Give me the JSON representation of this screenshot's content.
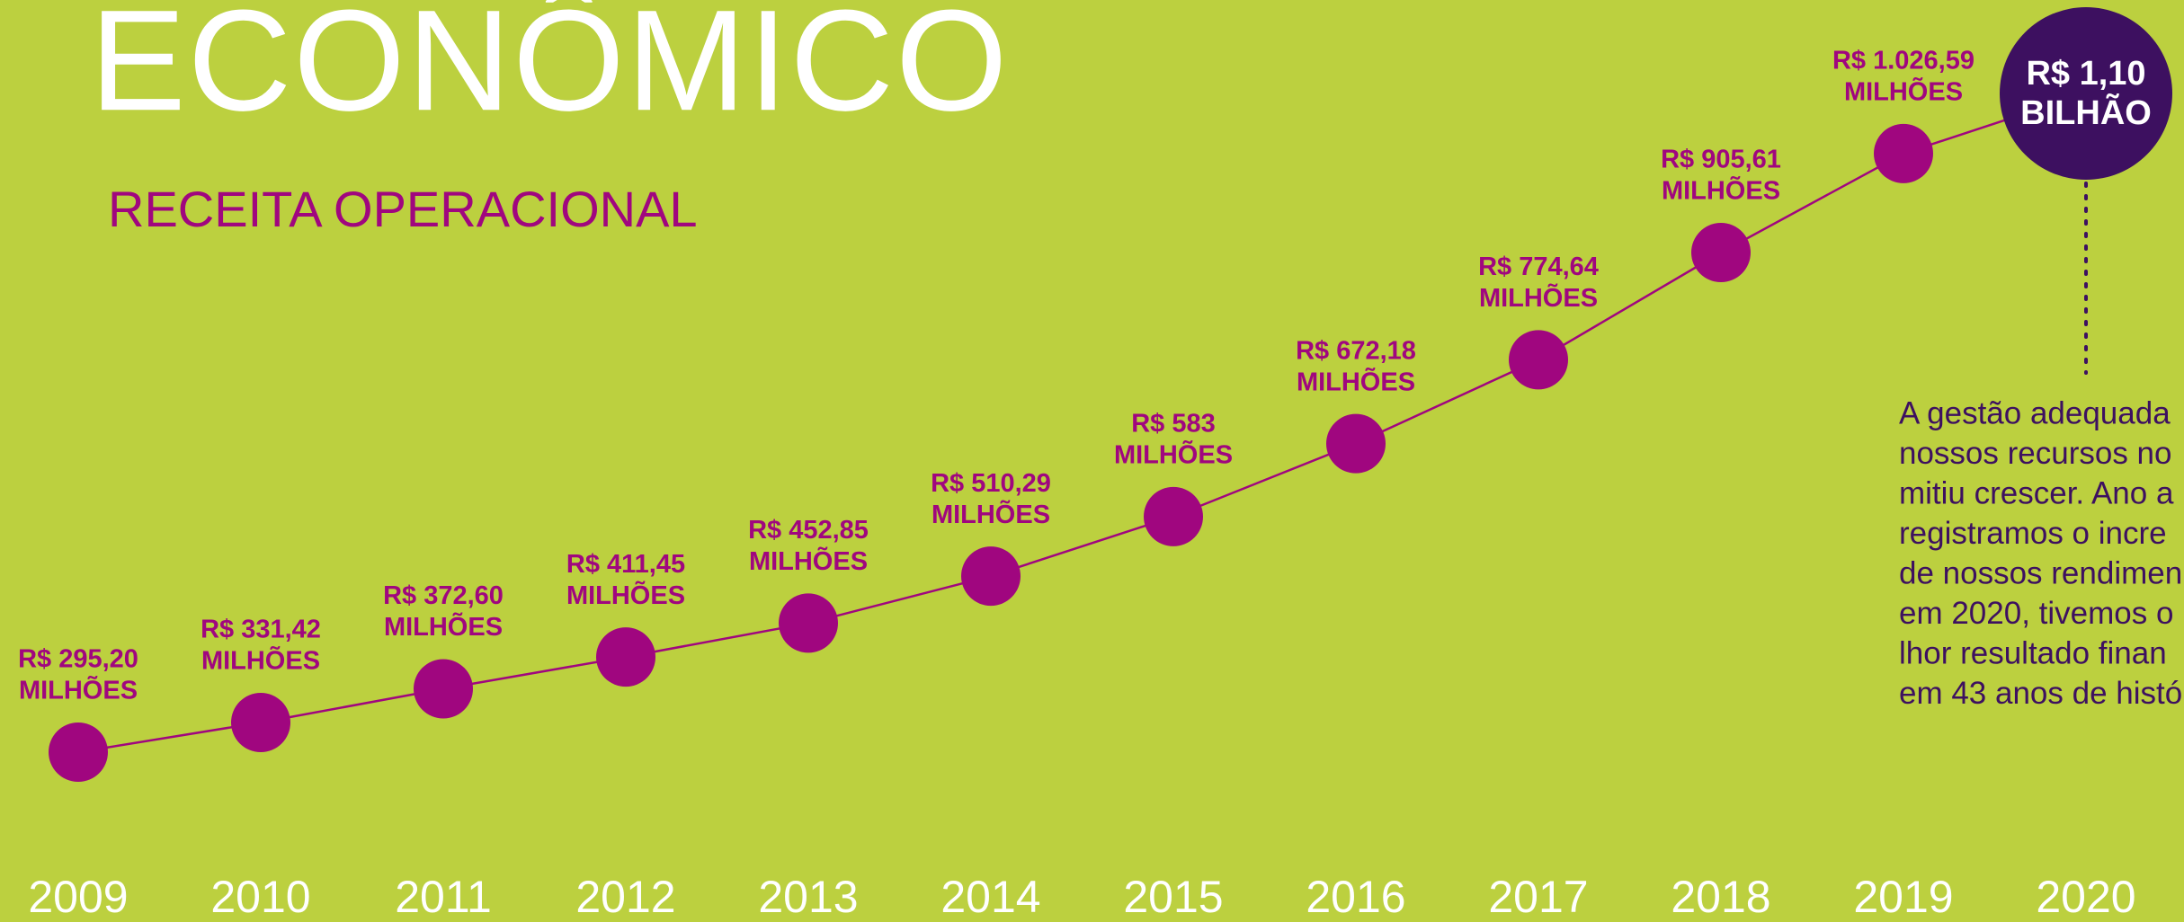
{
  "chart_data": {
    "type": "line",
    "title": "ECONÔMICO",
    "subtitle": "RECEITA OPERACIONAL",
    "categories": [
      "2009",
      "2010",
      "2011",
      "2012",
      "2013",
      "2014",
      "2015",
      "2016",
      "2017",
      "2018",
      "2019",
      "2020"
    ],
    "values": [
      295.2,
      331.42,
      372.6,
      411.45,
      452.85,
      510.29,
      583,
      672.18,
      774.64,
      905.61,
      1026.59,
      1100
    ],
    "value_labels": [
      [
        "R$ 295,20",
        "MILHÕES"
      ],
      [
        "R$ 331,42",
        "MILHÕES"
      ],
      [
        "R$ 372,60",
        "MILHÕES"
      ],
      [
        "R$ 411,45",
        "MILHÕES"
      ],
      [
        "R$ 452,85",
        "MILHÕES"
      ],
      [
        "R$ 510,29",
        "MILHÕES"
      ],
      [
        "R$ 583",
        "MILHÕES"
      ],
      [
        "R$ 672,18",
        "MILHÕES"
      ],
      [
        "R$ 774,64",
        "MILHÕES"
      ],
      [
        "R$ 905,61",
        "MILHÕES"
      ],
      [
        "R$ 1.026,59",
        "MILHÕES"
      ],
      [
        "R$ 1,10",
        "BILHÃO"
      ]
    ],
    "color": "#a0067f",
    "highlight_color": "#3d1060",
    "annotation": [
      "A gestão adequada",
      "nossos recursos no",
      "mitiu crescer. Ano a",
      "registramos o incre",
      "de nossos rendimen",
      "em 2020, tivemos o",
      "lhor resultado finan",
      "em 43 anos de histó"
    ]
  }
}
